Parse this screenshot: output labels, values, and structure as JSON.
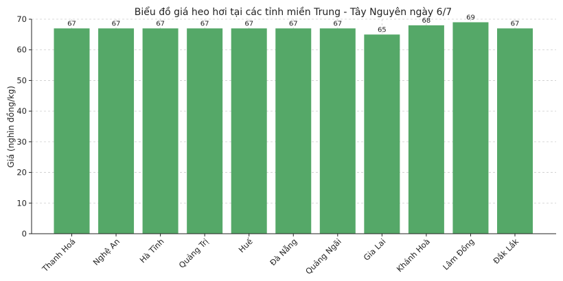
{
  "chart_data": {
    "type": "bar",
    "title": "Biểu đồ giá heo hơi tại các tỉnh miền Trung - Tây Nguyên ngày 6/7",
    "xlabel": "",
    "ylabel": "Giá (nghìn đồng/kg)",
    "categories": [
      "Thanh Hoá",
      "Nghệ An",
      "Hà Tĩnh",
      "Quảng Trị",
      "Huế",
      "Đà Nẵng",
      "Quảng Ngãi",
      "Gia Lai",
      "Khánh Hoà",
      "Lâm Đồng",
      "Đắk Lắk"
    ],
    "values": [
      67,
      67,
      67,
      67,
      67,
      67,
      67,
      65,
      68,
      69,
      67
    ],
    "ylim": [
      0,
      70
    ],
    "yticks": [
      0,
      10,
      20,
      30,
      40,
      50,
      60,
      70
    ],
    "grid": true,
    "bar_color": "#55a868"
  }
}
